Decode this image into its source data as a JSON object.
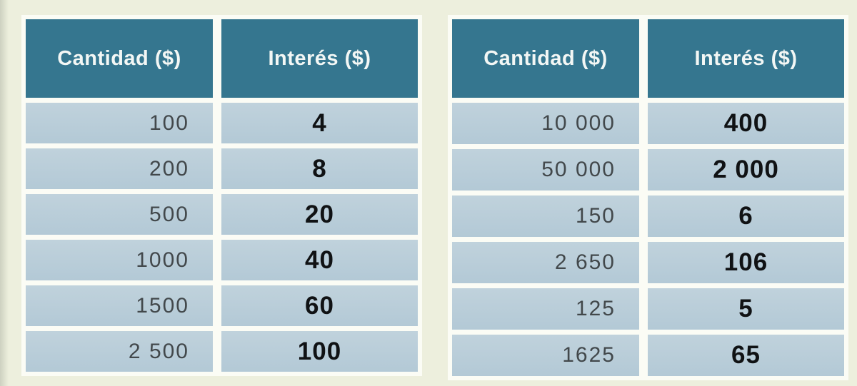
{
  "colors": {
    "page_background": "#edefdd",
    "header_background": "#35768f",
    "header_text": "#f3f7f5",
    "row_background": "#b8cdd9",
    "divider": "#fbfcf5",
    "cantidad_text": "#42484b",
    "interes_text": "#101214"
  },
  "tables": [
    {
      "position": "left",
      "columns": [
        "Cantidad ($)",
        "Interés ($)"
      ],
      "rows": [
        {
          "cantidad": "100",
          "interes": "4"
        },
        {
          "cantidad": "200",
          "interes": "8"
        },
        {
          "cantidad": "500",
          "interes": "20"
        },
        {
          "cantidad": "1000",
          "interes": "40"
        },
        {
          "cantidad": "1500",
          "interes": "60"
        },
        {
          "cantidad": "2 500",
          "interes": "100"
        }
      ]
    },
    {
      "position": "right",
      "columns": [
        "Cantidad ($)",
        "Interés ($)"
      ],
      "rows": [
        {
          "cantidad": "10 000",
          "interes": "400"
        },
        {
          "cantidad": "50 000",
          "interes": "2 000"
        },
        {
          "cantidad": "150",
          "interes": "6"
        },
        {
          "cantidad": "2 650",
          "interes": "106"
        },
        {
          "cantidad": "125",
          "interes": "5"
        },
        {
          "cantidad": "1625",
          "interes": "65"
        }
      ]
    }
  ]
}
